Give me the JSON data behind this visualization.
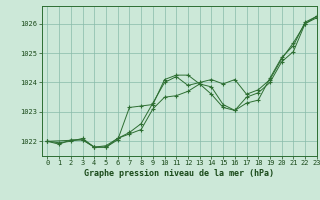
{
  "title": "Graphe pression niveau de la mer (hPa)",
  "background_color": "#cce8d8",
  "grid_color": "#88bbaa",
  "line_color": "#2d6e32",
  "ylim": [
    1021.5,
    1026.6
  ],
  "xlim": [
    -0.5,
    23
  ],
  "yticks": [
    1022,
    1023,
    1024,
    1025,
    1026
  ],
  "xticks": [
    0,
    1,
    2,
    3,
    4,
    5,
    6,
    7,
    8,
    9,
    10,
    11,
    12,
    13,
    14,
    15,
    16,
    17,
    18,
    19,
    20,
    21,
    22,
    23
  ],
  "line1_x": [
    0,
    1,
    2,
    3,
    4,
    5,
    6,
    7,
    8,
    9,
    10,
    11,
    12,
    13,
    14,
    15,
    16,
    17,
    18,
    19,
    20,
    21,
    22,
    23
  ],
  "line1_y": [
    1022.0,
    1021.9,
    1022.05,
    1022.05,
    1021.8,
    1021.85,
    1022.1,
    1022.25,
    1022.4,
    1023.1,
    1023.5,
    1023.55,
    1023.7,
    1023.95,
    1023.85,
    1023.25,
    1023.05,
    1023.5,
    1023.65,
    1024.0,
    1024.7,
    1025.05,
    1026.0,
    1026.2
  ],
  "line2_x": [
    0,
    1,
    2,
    3,
    4,
    5,
    6,
    7,
    8,
    9,
    10,
    11,
    12,
    13,
    14,
    15,
    16,
    17,
    18,
    19,
    20,
    21,
    22,
    23
  ],
  "line2_y": [
    1022.0,
    1021.95,
    1022.0,
    1022.1,
    1021.8,
    1021.8,
    1022.05,
    1023.15,
    1023.2,
    1023.25,
    1024.1,
    1024.25,
    1024.25,
    1023.95,
    1023.6,
    1023.15,
    1023.05,
    1023.3,
    1023.4,
    1024.15,
    1024.85,
    1025.25,
    1026.05,
    1026.25
  ],
  "line3_x": [
    0,
    3,
    4,
    5,
    6,
    7,
    8,
    9,
    10,
    11,
    12,
    13,
    14,
    15,
    16,
    17,
    18,
    19,
    20,
    21,
    22,
    23
  ],
  "line3_y": [
    1022.0,
    1022.05,
    1021.8,
    1021.8,
    1022.1,
    1022.3,
    1022.6,
    1023.3,
    1024.0,
    1024.2,
    1023.9,
    1024.0,
    1024.1,
    1023.95,
    1024.1,
    1023.6,
    1023.75,
    1024.1,
    1024.8,
    1025.35,
    1026.0,
    1026.25
  ],
  "xlabel_fontsize": 6.0,
  "tick_fontsize": 5.0
}
